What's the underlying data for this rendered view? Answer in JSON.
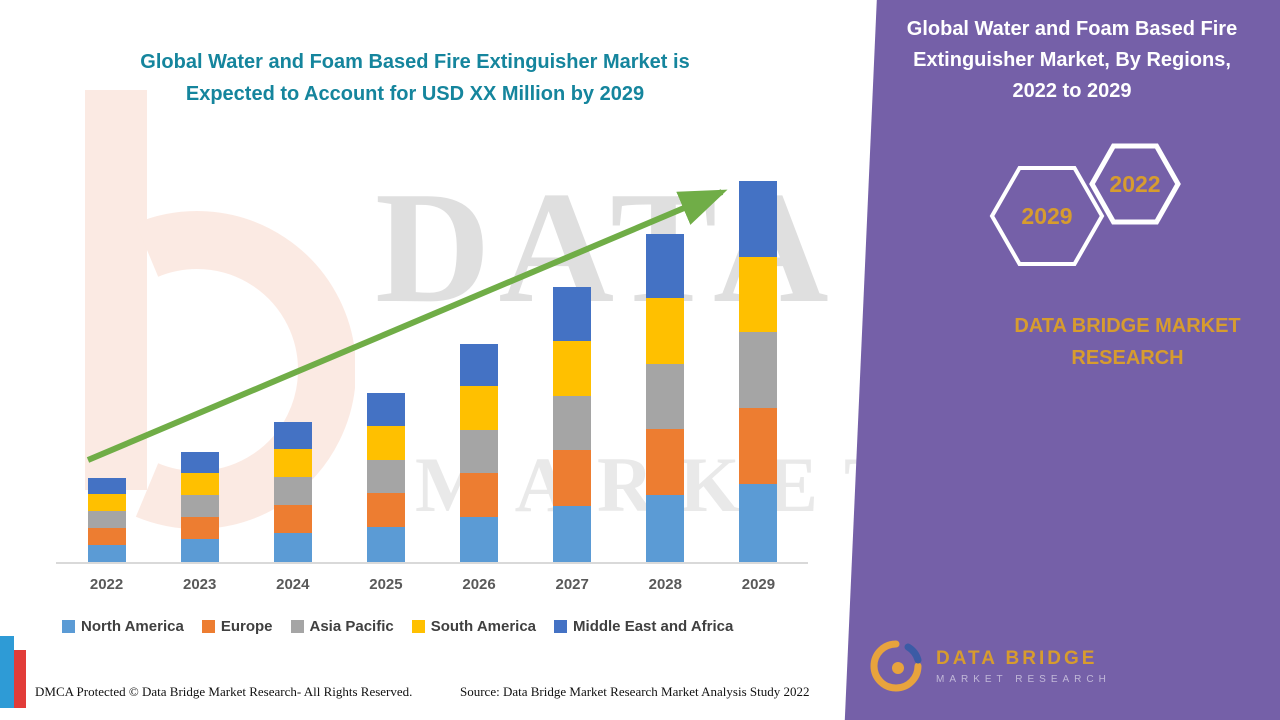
{
  "left_title": {
    "line1": "Global Water and Foam Based Fire Extinguisher Market is",
    "line2": "Expected to Account for USD XX Million by 2029"
  },
  "right_panel": {
    "line1": "Global Water and Foam Based Fire",
    "line2": "Extinguisher Market, By Regions,",
    "line3": "2022 to 2029",
    "badge_back": "2029",
    "badge_front": "2022",
    "brand_line1": "DATA BRIDGE MARKET",
    "brand_line2": "RESEARCH"
  },
  "footer": {
    "dmca": "DMCA Protected © Data Bridge Market Research- All Rights Reserved.",
    "source": "Source: Data Bridge Market Research Market Analysis Study 2022"
  },
  "footer_logo": {
    "name": "DATA BRIDGE",
    "sub": "MARKET RESEARCH"
  },
  "watermark": {
    "text1": "DATA BRIDGE",
    "text2": "MARKET RESEARCH"
  },
  "colors": {
    "title_teal": "#15859d",
    "panel_purple": "#7560a8",
    "gold": "#d79c2e",
    "arrow_green": "#70ad47"
  },
  "chart_data": {
    "type": "bar",
    "stacked": true,
    "title": "Global Water and Foam Based Fire Extinguisher Market is Expected to Account for USD XX Million by 2029",
    "xlabel": "",
    "ylabel": "",
    "units": "relative index (2029 total = 100, y-axis not shown)",
    "legend_position": "bottom",
    "grid": false,
    "trend_arrow": true,
    "categories": [
      "2022",
      "2023",
      "2024",
      "2025",
      "2026",
      "2027",
      "2028",
      "2029"
    ],
    "series": [
      {
        "name": "North America",
        "color": "#5B9BD5",
        "values": [
          4.6,
          6.0,
          7.6,
          9.2,
          11.8,
          14.8,
          17.6,
          20.4
        ]
      },
      {
        "name": "Europe",
        "color": "#ED7D31",
        "values": [
          4.4,
          5.8,
          7.4,
          8.9,
          11.5,
          14.5,
          17.3,
          20.0
        ]
      },
      {
        "name": "Asia Pacific",
        "color": "#A5A5A5",
        "values": [
          4.4,
          5.8,
          7.3,
          8.8,
          11.4,
          14.4,
          17.2,
          19.9
        ]
      },
      {
        "name": "South America",
        "color": "#FFC000",
        "values": [
          4.4,
          5.8,
          7.3,
          8.8,
          11.4,
          14.4,
          17.2,
          19.9
        ]
      },
      {
        "name": "Middle East and Africa",
        "color": "#4472C4",
        "values": [
          4.2,
          5.6,
          7.1,
          8.6,
          11.2,
          14.1,
          16.9,
          19.8
        ]
      }
    ],
    "totals": [
      22.0,
      29.0,
      36.7,
      44.3,
      57.3,
      72.2,
      86.2,
      100.0
    ]
  }
}
